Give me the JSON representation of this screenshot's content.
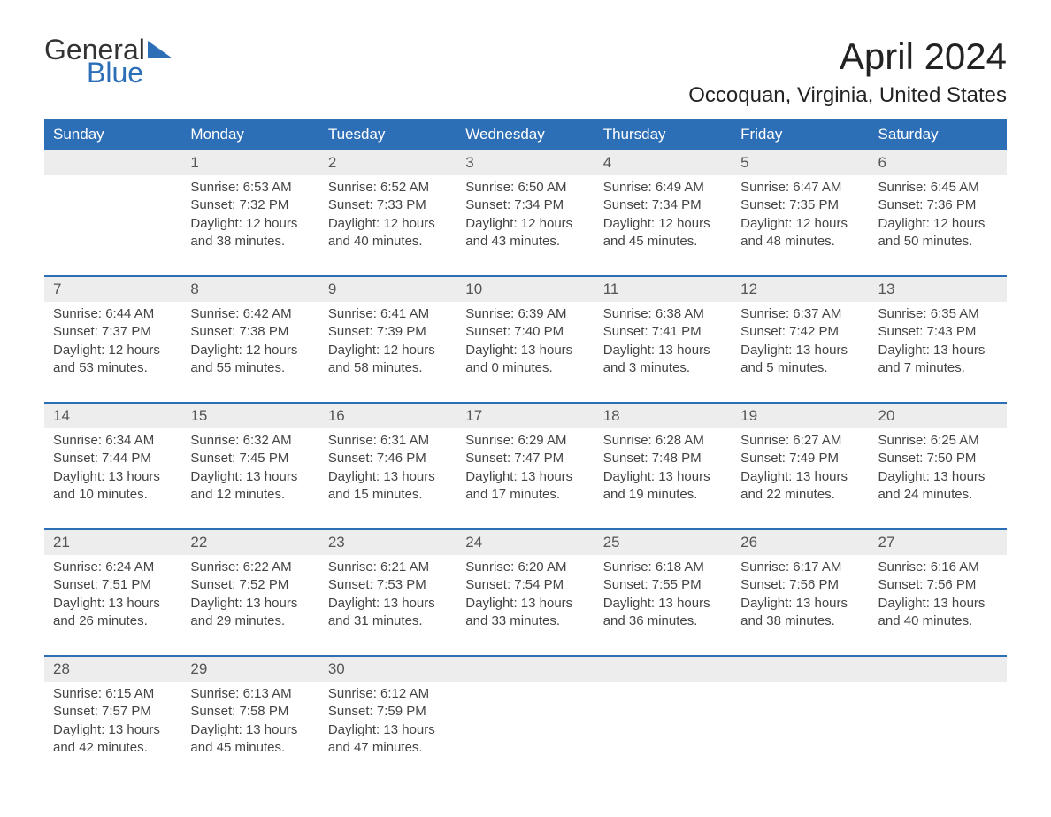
{
  "logo": {
    "word1": "General",
    "word2": "Blue",
    "accent_color": "#2d6fb7"
  },
  "title": "April 2024",
  "location": "Occoquan, Virginia, United States",
  "weekday_headers": [
    "Sunday",
    "Monday",
    "Tuesday",
    "Wednesday",
    "Thursday",
    "Friday",
    "Saturday"
  ],
  "colors": {
    "header_bg": "#2d6fb7",
    "header_text": "#ffffff",
    "daynum_bg": "#ededed",
    "row_border": "#2d6fb7",
    "text": "#444444"
  },
  "fonts": {
    "title_size_pt": 42,
    "location_size_pt": 24,
    "header_size_pt": 17,
    "body_size_pt": 15
  },
  "weeks": [
    {
      "days": [
        {
          "num": "",
          "sunrise": "",
          "sunset": "",
          "daylight": ""
        },
        {
          "num": "1",
          "sunrise": "Sunrise: 6:53 AM",
          "sunset": "Sunset: 7:32 PM",
          "daylight": "Daylight: 12 hours and 38 minutes."
        },
        {
          "num": "2",
          "sunrise": "Sunrise: 6:52 AM",
          "sunset": "Sunset: 7:33 PM",
          "daylight": "Daylight: 12 hours and 40 minutes."
        },
        {
          "num": "3",
          "sunrise": "Sunrise: 6:50 AM",
          "sunset": "Sunset: 7:34 PM",
          "daylight": "Daylight: 12 hours and 43 minutes."
        },
        {
          "num": "4",
          "sunrise": "Sunrise: 6:49 AM",
          "sunset": "Sunset: 7:34 PM",
          "daylight": "Daylight: 12 hours and 45 minutes."
        },
        {
          "num": "5",
          "sunrise": "Sunrise: 6:47 AM",
          "sunset": "Sunset: 7:35 PM",
          "daylight": "Daylight: 12 hours and 48 minutes."
        },
        {
          "num": "6",
          "sunrise": "Sunrise: 6:45 AM",
          "sunset": "Sunset: 7:36 PM",
          "daylight": "Daylight: 12 hours and 50 minutes."
        }
      ]
    },
    {
      "days": [
        {
          "num": "7",
          "sunrise": "Sunrise: 6:44 AM",
          "sunset": "Sunset: 7:37 PM",
          "daylight": "Daylight: 12 hours and 53 minutes."
        },
        {
          "num": "8",
          "sunrise": "Sunrise: 6:42 AM",
          "sunset": "Sunset: 7:38 PM",
          "daylight": "Daylight: 12 hours and 55 minutes."
        },
        {
          "num": "9",
          "sunrise": "Sunrise: 6:41 AM",
          "sunset": "Sunset: 7:39 PM",
          "daylight": "Daylight: 12 hours and 58 minutes."
        },
        {
          "num": "10",
          "sunrise": "Sunrise: 6:39 AM",
          "sunset": "Sunset: 7:40 PM",
          "daylight": "Daylight: 13 hours and 0 minutes."
        },
        {
          "num": "11",
          "sunrise": "Sunrise: 6:38 AM",
          "sunset": "Sunset: 7:41 PM",
          "daylight": "Daylight: 13 hours and 3 minutes."
        },
        {
          "num": "12",
          "sunrise": "Sunrise: 6:37 AM",
          "sunset": "Sunset: 7:42 PM",
          "daylight": "Daylight: 13 hours and 5 minutes."
        },
        {
          "num": "13",
          "sunrise": "Sunrise: 6:35 AM",
          "sunset": "Sunset: 7:43 PM",
          "daylight": "Daylight: 13 hours and 7 minutes."
        }
      ]
    },
    {
      "days": [
        {
          "num": "14",
          "sunrise": "Sunrise: 6:34 AM",
          "sunset": "Sunset: 7:44 PM",
          "daylight": "Daylight: 13 hours and 10 minutes."
        },
        {
          "num": "15",
          "sunrise": "Sunrise: 6:32 AM",
          "sunset": "Sunset: 7:45 PM",
          "daylight": "Daylight: 13 hours and 12 minutes."
        },
        {
          "num": "16",
          "sunrise": "Sunrise: 6:31 AM",
          "sunset": "Sunset: 7:46 PM",
          "daylight": "Daylight: 13 hours and 15 minutes."
        },
        {
          "num": "17",
          "sunrise": "Sunrise: 6:29 AM",
          "sunset": "Sunset: 7:47 PM",
          "daylight": "Daylight: 13 hours and 17 minutes."
        },
        {
          "num": "18",
          "sunrise": "Sunrise: 6:28 AM",
          "sunset": "Sunset: 7:48 PM",
          "daylight": "Daylight: 13 hours and 19 minutes."
        },
        {
          "num": "19",
          "sunrise": "Sunrise: 6:27 AM",
          "sunset": "Sunset: 7:49 PM",
          "daylight": "Daylight: 13 hours and 22 minutes."
        },
        {
          "num": "20",
          "sunrise": "Sunrise: 6:25 AM",
          "sunset": "Sunset: 7:50 PM",
          "daylight": "Daylight: 13 hours and 24 minutes."
        }
      ]
    },
    {
      "days": [
        {
          "num": "21",
          "sunrise": "Sunrise: 6:24 AM",
          "sunset": "Sunset: 7:51 PM",
          "daylight": "Daylight: 13 hours and 26 minutes."
        },
        {
          "num": "22",
          "sunrise": "Sunrise: 6:22 AM",
          "sunset": "Sunset: 7:52 PM",
          "daylight": "Daylight: 13 hours and 29 minutes."
        },
        {
          "num": "23",
          "sunrise": "Sunrise: 6:21 AM",
          "sunset": "Sunset: 7:53 PM",
          "daylight": "Daylight: 13 hours and 31 minutes."
        },
        {
          "num": "24",
          "sunrise": "Sunrise: 6:20 AM",
          "sunset": "Sunset: 7:54 PM",
          "daylight": "Daylight: 13 hours and 33 minutes."
        },
        {
          "num": "25",
          "sunrise": "Sunrise: 6:18 AM",
          "sunset": "Sunset: 7:55 PM",
          "daylight": "Daylight: 13 hours and 36 minutes."
        },
        {
          "num": "26",
          "sunrise": "Sunrise: 6:17 AM",
          "sunset": "Sunset: 7:56 PM",
          "daylight": "Daylight: 13 hours and 38 minutes."
        },
        {
          "num": "27",
          "sunrise": "Sunrise: 6:16 AM",
          "sunset": "Sunset: 7:56 PM",
          "daylight": "Daylight: 13 hours and 40 minutes."
        }
      ]
    },
    {
      "days": [
        {
          "num": "28",
          "sunrise": "Sunrise: 6:15 AM",
          "sunset": "Sunset: 7:57 PM",
          "daylight": "Daylight: 13 hours and 42 minutes."
        },
        {
          "num": "29",
          "sunrise": "Sunrise: 6:13 AM",
          "sunset": "Sunset: 7:58 PM",
          "daylight": "Daylight: 13 hours and 45 minutes."
        },
        {
          "num": "30",
          "sunrise": "Sunrise: 6:12 AM",
          "sunset": "Sunset: 7:59 PM",
          "daylight": "Daylight: 13 hours and 47 minutes."
        },
        {
          "num": "",
          "sunrise": "",
          "sunset": "",
          "daylight": ""
        },
        {
          "num": "",
          "sunrise": "",
          "sunset": "",
          "daylight": ""
        },
        {
          "num": "",
          "sunrise": "",
          "sunset": "",
          "daylight": ""
        },
        {
          "num": "",
          "sunrise": "",
          "sunset": "",
          "daylight": ""
        }
      ]
    }
  ]
}
